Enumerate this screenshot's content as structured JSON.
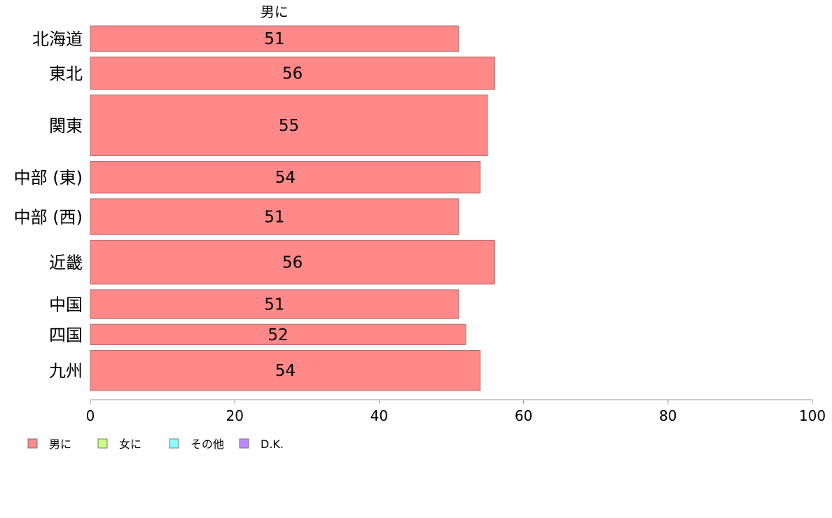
{
  "chart_data": {
    "type": "bar",
    "orientation": "horizontal",
    "variable_width": true,
    "title": "",
    "xlabel": "",
    "ylabel": "",
    "xlim": [
      0,
      100
    ],
    "x_ticks": [
      0,
      20,
      40,
      60,
      80,
      100
    ],
    "grid": false,
    "categories": [
      "北海道",
      "東北",
      "関東",
      "中部 (東)",
      "中部 (西)",
      "近畿",
      "中国",
      "四国",
      "九州"
    ],
    "series": [
      {
        "name": "男に",
        "color": "#ff8888",
        "values": [
          51,
          56,
          55,
          54,
          51,
          56,
          51,
          52,
          54
        ]
      }
    ],
    "bar_weights": [
      36,
      46,
      86,
      45,
      51,
      62,
      41,
      29,
      57
    ],
    "data_labels": [
      "51",
      "56",
      "55",
      "54",
      "51",
      "56",
      "51",
      "52",
      "54"
    ],
    "segment_header": "男に",
    "legend": {
      "placement": "bottom-left",
      "entries": [
        {
          "label": "男に",
          "color": "#ff8888"
        },
        {
          "label": "女に",
          "color": "#ccff88"
        },
        {
          "label": "その他",
          "color": "#88ffff"
        },
        {
          "label": "D.K.",
          "color": "#bb88ff"
        }
      ]
    }
  }
}
